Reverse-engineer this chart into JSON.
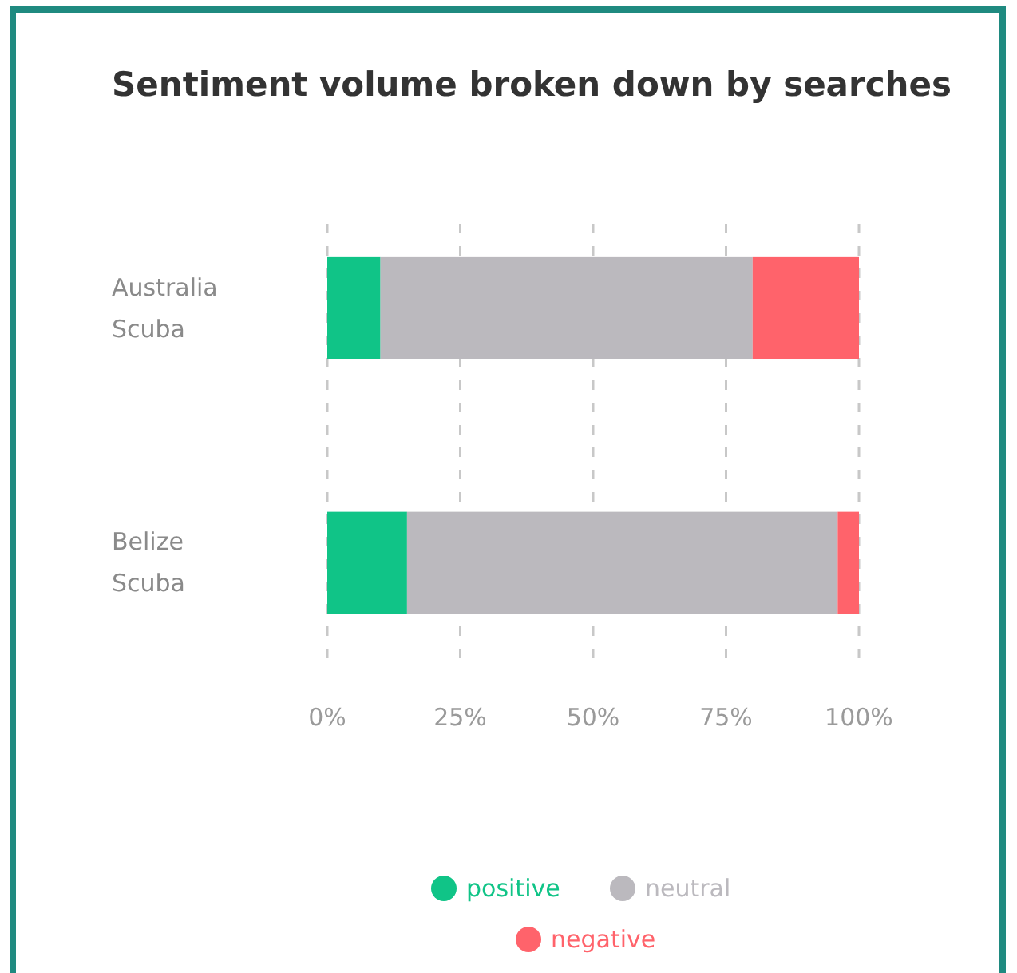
{
  "chart_data": {
    "type": "bar",
    "title": "Sentiment volume broken down by searches",
    "orientation": "horizontal",
    "stacked": true,
    "categories": [
      "Australia Scuba",
      "Belize Scuba"
    ],
    "series": [
      {
        "name": "positive",
        "color": "#10c487",
        "values": [
          10,
          15
        ]
      },
      {
        "name": "neutral",
        "color": "#bbb9be",
        "values": [
          70,
          81
        ]
      },
      {
        "name": "negative",
        "color": "#ff636b",
        "values": [
          20,
          4
        ]
      }
    ],
    "xlim": [
      0,
      100
    ],
    "xticks": [
      {
        "value": 0,
        "label": "0%"
      },
      {
        "value": 25,
        "label": "25%"
      },
      {
        "value": 50,
        "label": "50%"
      },
      {
        "value": 75,
        "label": "75%"
      },
      {
        "value": 100,
        "label": "100%"
      }
    ],
    "grid": "x",
    "legend": "bottom"
  }
}
